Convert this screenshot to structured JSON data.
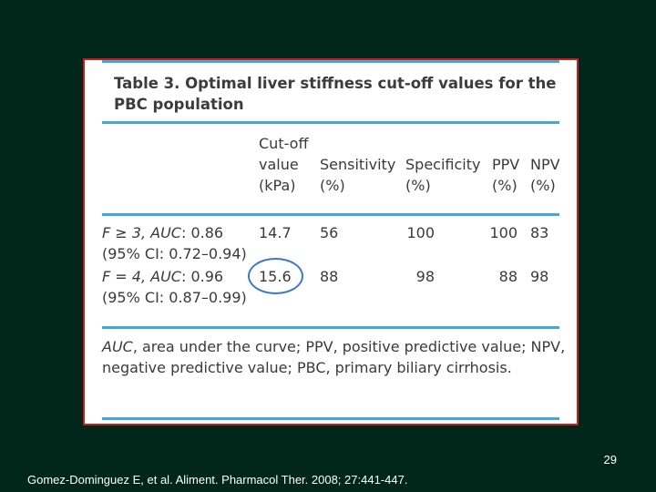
{
  "table": {
    "title": "Table 3.  Optimal  liver stiffness cut-off values for the PBC population",
    "columns": [
      {
        "lines": "Cut-off\nvalue\n(kPa)"
      },
      {
        "lines": "Sensitivity\n(%)"
      },
      {
        "lines": "Specificity\n(%)"
      },
      {
        "lines": "PPV\n(%)"
      },
      {
        "lines": "NPV\n(%)"
      }
    ],
    "rows": [
      {
        "label_stage": "F ≥ 3,",
        "label_auc": "AUC",
        "label_auc_value": ": 0.86",
        "label_ci": "(95% CI: 0.72–0.94)",
        "cutoff": "14.7",
        "sensitivity": "56",
        "specificity": "100",
        "ppv": "100",
        "npv": "83"
      },
      {
        "label_stage": "F = 4,",
        "label_auc": "AUC",
        "label_auc_value": ": 0.96",
        "label_ci": "(95% CI: 0.87–0.99)",
        "cutoff": "15.6",
        "sensitivity": "88",
        "specificity": "98",
        "ppv": "88",
        "npv": "98"
      }
    ],
    "footnote_auc": "AUC",
    "footnote_rest": ", area under the curve; PPV, positive predictive value; NPV, negative predictive value; PBC, primary biliary cirrhosis."
  },
  "slide": {
    "page_number": "29",
    "citation": "Gomez-Dominguez E, et al. Aliment. Pharmacol Ther. 2008; 27:441-447."
  },
  "colors": {
    "background": "#01261a",
    "frame": "#d01a1a",
    "rule": "#45a6d9",
    "highlight_circle": "#3b77c8"
  }
}
